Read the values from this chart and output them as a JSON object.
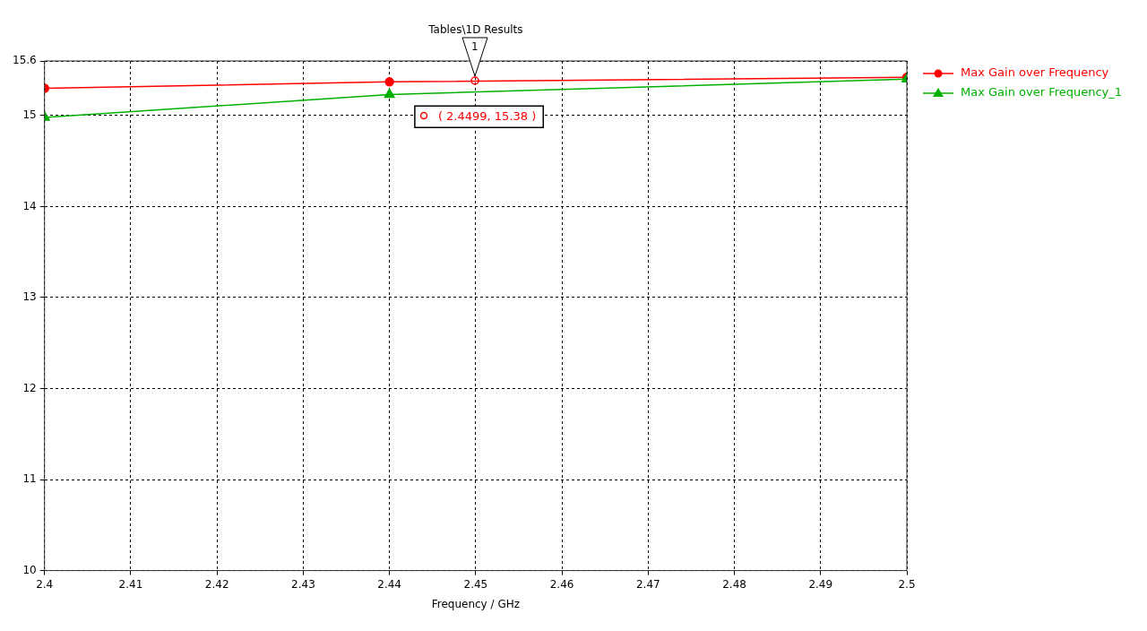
{
  "chart_data": {
    "type": "line",
    "title": "Tables\\1D Results",
    "xlabel": "Frequency / GHz",
    "xlim": [
      2.4,
      2.5
    ],
    "xticks": [
      2.4,
      2.41,
      2.42,
      2.43,
      2.44,
      2.45,
      2.46,
      2.47,
      2.48,
      2.49,
      2.5
    ],
    "ylim": [
      10,
      15.6
    ],
    "yticks": [
      10,
      11,
      12,
      13,
      14,
      15,
      15.6
    ],
    "grid": true,
    "legend": "right",
    "line_style": "solid",
    "series": [
      {
        "name": "Max Gain over Frequency",
        "color": "#ff0000",
        "marker": "circle",
        "x": [
          2.4,
          2.44,
          2.5
        ],
        "values": [
          15.3,
          15.37,
          15.42
        ]
      },
      {
        "name": "Max Gain over Frequency_1",
        "color": "#00b000",
        "marker": "triangle",
        "x": [
          2.4,
          2.44,
          2.5
        ],
        "values": [
          14.98,
          15.23,
          15.4
        ]
      }
    ],
    "annotations": [
      {
        "text": "1",
        "x": 2.4499,
        "y": 15.38
      },
      {
        "text": "( 2.4499, 15.38 )",
        "x": 2.4499,
        "y": 15.38
      }
    ]
  }
}
